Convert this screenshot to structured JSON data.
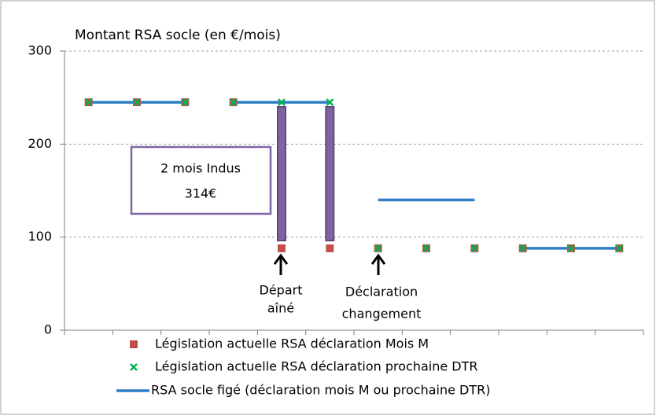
{
  "chart_data": {
    "type": "scatter",
    "title": "Montant RSA socle (en €/mois)",
    "x": [
      1,
      2,
      3,
      4,
      5,
      6,
      7,
      8,
      9,
      10,
      11,
      12
    ],
    "xlim": [
      0.5,
      12.5
    ],
    "ylim": [
      0,
      300
    ],
    "yticks": [
      0,
      100,
      200,
      300
    ],
    "grid": true,
    "legend": "bottom",
    "series": [
      {
        "name": "RSA socle figé (déclaration mois M ou prochaine DTR)",
        "type": "line",
        "color": "#2e7fc6",
        "x": [
          1,
          2,
          3,
          null,
          4,
          5,
          6,
          null,
          7,
          8,
          9,
          null,
          10,
          11,
          12
        ],
        "values": [
          245,
          245,
          245,
          null,
          245,
          245,
          245,
          null,
          140,
          140,
          140,
          null,
          88,
          88,
          88
        ]
      },
      {
        "name": "Législation actuelle  RSA déclaration Mois M",
        "type": "scatter",
        "marker": "square",
        "color": "#c0504d",
        "values": [
          245,
          245,
          245,
          245,
          88,
          88,
          88,
          88,
          88,
          88,
          88,
          88
        ]
      },
      {
        "name": "Législation actuelle RSA déclaration prochaine DTR",
        "type": "scatter",
        "marker": "x",
        "color": "#00b050",
        "values": [
          245,
          245,
          245,
          245,
          245,
          245,
          88,
          88,
          88,
          88,
          88,
          88
        ]
      }
    ],
    "annotations": [
      {
        "lines": [
          "2 mois Indus",
          "314€"
        ]
      },
      {
        "lines": [
          "Départ",
          "aîné"
        ]
      },
      {
        "lines": [
          "Déclaration",
          "changement"
        ]
      }
    ]
  }
}
